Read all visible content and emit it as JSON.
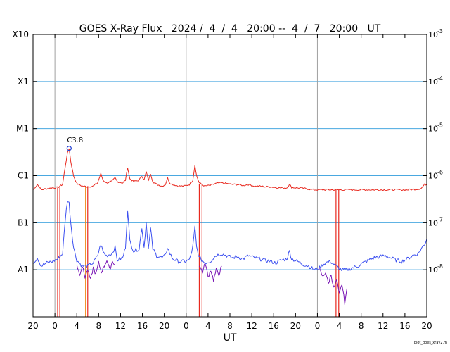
{
  "chart_data": {
    "type": "line",
    "title": "GOES X-Ray Flux   2024 /  4  /  4   20:00 --  4  /  7   20:00   UT",
    "xlabel": "UT",
    "ylabel": "",
    "footer": "plot_goes_xray2.m",
    "x_range_hours": [
      0,
      72
    ],
    "x_ticks": [
      {
        "h": 0,
        "label": "20"
      },
      {
        "h": 4,
        "label": "0"
      },
      {
        "h": 8,
        "label": "4"
      },
      {
        "h": 12,
        "label": "8"
      },
      {
        "h": 16,
        "label": "12"
      },
      {
        "h": 20,
        "label": "16"
      },
      {
        "h": 24,
        "label": "20"
      },
      {
        "h": 28,
        "label": "0"
      },
      {
        "h": 32,
        "label": "4"
      },
      {
        "h": 36,
        "label": "8"
      },
      {
        "h": 40,
        "label": "12"
      },
      {
        "h": 44,
        "label": "16"
      },
      {
        "h": 48,
        "label": "20"
      },
      {
        "h": 52,
        "label": "0"
      },
      {
        "h": 56,
        "label": "4"
      },
      {
        "h": 60,
        "label": "8"
      },
      {
        "h": 64,
        "label": "12"
      },
      {
        "h": 68,
        "label": "16"
      },
      {
        "h": 72,
        "label": "20"
      }
    ],
    "day_boundaries_hours": [
      4,
      28,
      52
    ],
    "y_scale": "log",
    "y_range": [
      1e-09,
      0.001
    ],
    "class_labels": [
      {
        "label": "X10",
        "value": 0.001
      },
      {
        "label": "X1",
        "value": 0.0001
      },
      {
        "label": "M1",
        "value": 1e-05
      },
      {
        "label": "C1",
        "value": 1e-06
      },
      {
        "label": "B1",
        "value": 1e-07
      },
      {
        "label": "A1",
        "value": 1e-08
      }
    ],
    "right_ticks": [
      {
        "base": "10",
        "exp": "-3",
        "value": 0.001
      },
      {
        "base": "10",
        "exp": "-4",
        "value": 0.0001
      },
      {
        "base": "10",
        "exp": "-5",
        "value": 1e-05
      },
      {
        "base": "10",
        "exp": "-6",
        "value": 1e-06
      },
      {
        "base": "10",
        "exp": "-7",
        "value": 1e-07
      },
      {
        "base": "10",
        "exp": "-8",
        "value": 1e-08
      }
    ],
    "grid_lines": [
      0.0001,
      1e-05,
      1e-06,
      1e-07,
      1e-08
    ],
    "annotation": {
      "label": "C3.8",
      "h": 6.6,
      "value": 3.8e-06
    },
    "colors": {
      "long_primary": "#e8281e",
      "long_secondary": "#f08c1e",
      "short_primary": "#3c50f0",
      "short_secondary": "#7814b4",
      "grid": "#4aa8e0",
      "day_line": "#a0a0a0",
      "marker": "#1e3cd2"
    },
    "series": [
      {
        "name": "",
        "color": "#e8281e",
        "points": [
          [
            0,
            5e-07
          ],
          [
            0.8,
            6.5e-07
          ],
          [
            1.5,
            5e-07
          ],
          [
            2.5,
            5.3e-07
          ],
          [
            3.5,
            5.5e-07
          ],
          [
            4.5,
            5.6e-07
          ],
          [
            5.4,
            6.5e-07
          ],
          [
            5.9,
            1.6e-06
          ],
          [
            6.3,
            3e-06
          ],
          [
            6.6,
            3.8e-06
          ],
          [
            6.9,
            2e-06
          ],
          [
            7.4,
            1e-06
          ],
          [
            8.0,
            6.8e-07
          ],
          [
            9.0,
            6e-07
          ],
          [
            10.0,
            5.8e-07
          ],
          [
            11.0,
            6e-07
          ],
          [
            11.8,
            7e-07
          ],
          [
            12.4,
            1.1e-06
          ],
          [
            12.8,
            8e-07
          ],
          [
            13.4,
            7e-07
          ],
          [
            14.4,
            7.5e-07
          ],
          [
            15.0,
            9e-07
          ],
          [
            15.4,
            7.5e-07
          ],
          [
            16.4,
            7e-07
          ],
          [
            16.9,
            8e-07
          ],
          [
            17.3,
            1.5e-06
          ],
          [
            17.7,
            8.5e-07
          ],
          [
            18.4,
            7.5e-07
          ],
          [
            19.4,
            8e-07
          ],
          [
            19.9,
            1e-06
          ],
          [
            20.3,
            8e-07
          ],
          [
            20.7,
            1.2e-06
          ],
          [
            21.1,
            8e-07
          ],
          [
            21.5,
            1.1e-06
          ],
          [
            21.9,
            7.5e-07
          ],
          [
            22.6,
            6.5e-07
          ],
          [
            23.6,
            6e-07
          ],
          [
            24.2,
            6.5e-07
          ],
          [
            24.6,
            9e-07
          ],
          [
            25.0,
            7e-07
          ],
          [
            25.6,
            6.5e-07
          ],
          [
            26.6,
            6e-07
          ],
          [
            27.6,
            6e-07
          ],
          [
            28.6,
            6.5e-07
          ],
          [
            29.2,
            8e-07
          ],
          [
            29.6,
            1.7e-06
          ],
          [
            29.9,
            1e-06
          ],
          [
            30.4,
            7e-07
          ],
          [
            31.4,
            6e-07
          ],
          [
            32.4,
            6.2e-07
          ],
          [
            33.4,
            6.8e-07
          ],
          [
            34.4,
            7e-07
          ],
          [
            35.4,
            6.8e-07
          ],
          [
            36.4,
            6.5e-07
          ],
          [
            37.4,
            6.5e-07
          ],
          [
            38.4,
            6.2e-07
          ],
          [
            39.4,
            6.5e-07
          ],
          [
            40.4,
            6e-07
          ],
          [
            41.4,
            6e-07
          ],
          [
            42.4,
            5.8e-07
          ],
          [
            43.4,
            5.8e-07
          ],
          [
            44.4,
            5.6e-07
          ],
          [
            45.4,
            5.5e-07
          ],
          [
            46.4,
            5.5e-07
          ],
          [
            46.9,
            6.5e-07
          ],
          [
            47.3,
            5.6e-07
          ],
          [
            48.4,
            5.5e-07
          ],
          [
            49.4,
            5.4e-07
          ],
          [
            50.4,
            5.2e-07
          ],
          [
            51.4,
            5e-07
          ],
          [
            52.4,
            5e-07
          ],
          [
            53.4,
            5e-07
          ],
          [
            54.4,
            5e-07
          ],
          [
            55.4,
            5e-07
          ],
          [
            56.4,
            5e-07
          ],
          [
            57.4,
            5e-07
          ],
          [
            58.4,
            5e-07
          ],
          [
            59.4,
            5e-07
          ],
          [
            60.4,
            5e-07
          ],
          [
            61.4,
            5e-07
          ],
          [
            62.4,
            5e-07
          ],
          [
            63.4,
            5e-07
          ],
          [
            64.4,
            5e-07
          ],
          [
            65.4,
            5e-07
          ],
          [
            66.4,
            5e-07
          ],
          [
            67.4,
            5e-07
          ],
          [
            68.4,
            5e-07
          ],
          [
            69.4,
            5.1e-07
          ],
          [
            70.4,
            5.2e-07
          ],
          [
            71.0,
            5.4e-07
          ],
          [
            71.6,
            6.5e-07
          ],
          [
            72,
            6.5e-07
          ]
        ]
      },
      {
        "name": "",
        "color": "#3c50f0",
        "points": [
          [
            0,
            1.4e-08
          ],
          [
            0.8,
            1.8e-08
          ],
          [
            1.5,
            1.2e-08
          ],
          [
            2.5,
            1.4e-08
          ],
          [
            3.5,
            1.5e-08
          ],
          [
            4.5,
            1.7e-08
          ],
          [
            5.4,
            2.2e-08
          ],
          [
            5.9,
            1.2e-07
          ],
          [
            6.3,
            3e-07
          ],
          [
            6.6,
            2.6e-07
          ],
          [
            6.9,
            1e-07
          ],
          [
            7.4,
            3e-08
          ],
          [
            8.0,
            1.6e-08
          ],
          [
            9.0,
            1.2e-08
          ],
          [
            10.0,
            1.2e-08
          ],
          [
            11.0,
            1.4e-08
          ],
          [
            11.8,
            2e-08
          ],
          [
            12.4,
            3.5e-08
          ],
          [
            12.8,
            2.4e-08
          ],
          [
            13.4,
            2e-08
          ],
          [
            14.4,
            2.2e-08
          ],
          [
            15.0,
            3e-08
          ],
          [
            15.4,
            1.6e-08
          ],
          [
            16.4,
            1.8e-08
          ],
          [
            16.9,
            3e-08
          ],
          [
            17.3,
            1.9e-07
          ],
          [
            17.7,
            4e-08
          ],
          [
            18.4,
            2.5e-08
          ],
          [
            19.4,
            2.8e-08
          ],
          [
            19.9,
            8e-08
          ],
          [
            20.3,
            3e-08
          ],
          [
            20.7,
            1e-07
          ],
          [
            21.1,
            2.8e-08
          ],
          [
            21.5,
            7.5e-08
          ],
          [
            21.9,
            2.8e-08
          ],
          [
            22.6,
            2e-08
          ],
          [
            23.6,
            1.8e-08
          ],
          [
            24.2,
            2e-08
          ],
          [
            24.6,
            3e-08
          ],
          [
            25.0,
            2.2e-08
          ],
          [
            25.6,
            1.7e-08
          ],
          [
            26.6,
            1.5e-08
          ],
          [
            27.6,
            1.5e-08
          ],
          [
            28.6,
            1.6e-08
          ],
          [
            29.2,
            3e-08
          ],
          [
            29.6,
            8e-08
          ],
          [
            29.9,
            3e-08
          ],
          [
            30.4,
            1.8e-08
          ],
          [
            31.4,
            1.4e-08
          ],
          [
            32.4,
            1.5e-08
          ],
          [
            33.4,
            2e-08
          ],
          [
            34.4,
            2.2e-08
          ],
          [
            35.4,
            2e-08
          ],
          [
            36.4,
            1.8e-08
          ],
          [
            37.4,
            1.9e-08
          ],
          [
            38.4,
            1.7e-08
          ],
          [
            39.4,
            2e-08
          ],
          [
            40.4,
            1.8e-08
          ],
          [
            41.4,
            1.7e-08
          ],
          [
            42.4,
            1.6e-08
          ],
          [
            43.4,
            1.5e-08
          ],
          [
            44.4,
            1.4e-08
          ],
          [
            45.4,
            1.6e-08
          ],
          [
            46.4,
            1.7e-08
          ],
          [
            46.9,
            2.5e-08
          ],
          [
            47.3,
            1.7e-08
          ],
          [
            48.4,
            1.5e-08
          ],
          [
            49.4,
            1.3e-08
          ],
          [
            50.4,
            1.2e-08
          ],
          [
            51.4,
            1e-08
          ],
          [
            52.4,
            1.1e-08
          ],
          [
            53.4,
            1.4e-08
          ],
          [
            54.4,
            1.5e-08
          ],
          [
            55.4,
            1.2e-08
          ],
          [
            56.4,
            1e-08
          ],
          [
            57.4,
            1e-08
          ],
          [
            58.4,
            1.1e-08
          ],
          [
            59.4,
            1.2e-08
          ],
          [
            60.4,
            1.4e-08
          ],
          [
            61.4,
            1.6e-08
          ],
          [
            62.4,
            1.8e-08
          ],
          [
            63.4,
            1.9e-08
          ],
          [
            64.4,
            2e-08
          ],
          [
            65.4,
            1.8e-08
          ],
          [
            66.4,
            1.6e-08
          ],
          [
            67.4,
            1.5e-08
          ],
          [
            68.4,
            1.7e-08
          ],
          [
            69.4,
            2e-08
          ],
          [
            70.4,
            2.2e-08
          ],
          [
            71.0,
            2.8e-08
          ],
          [
            71.6,
            3.5e-08
          ],
          [
            72,
            4.5e-08
          ]
        ]
      },
      {
        "name": "",
        "color": "#7814b4",
        "points": [
          [
            8.0,
            1.3e-08
          ],
          [
            8.5,
            8e-09
          ],
          [
            9.0,
            1.2e-08
          ],
          [
            9.5,
            7e-09
          ],
          [
            10.0,
            1e-08
          ],
          [
            10.5,
            6e-09
          ],
          [
            11.0,
            1.1e-08
          ],
          [
            11.5,
            8e-09
          ],
          [
            12.0,
            1.4e-08
          ],
          [
            12.5,
            9e-09
          ],
          [
            13.0,
            1.2e-08
          ],
          [
            13.5,
            1.6e-08
          ],
          [
            14.0,
            1e-08
          ],
          [
            14.5,
            1.5e-08
          ],
          [
            15.0,
            1.3e-08
          ]
        ]
      },
      {
        "name": "",
        "color": "#7814b4",
        "points": [
          [
            30.4,
            1.2e-08
          ],
          [
            31.0,
            9e-09
          ],
          [
            31.5,
            1.4e-08
          ],
          [
            32.0,
            7e-09
          ],
          [
            32.5,
            1e-08
          ],
          [
            33.0,
            6e-09
          ],
          [
            33.5,
            1e-08
          ],
          [
            34.0,
            8e-09
          ],
          [
            34.5,
            1.2e-08
          ]
        ]
      },
      {
        "name": "",
        "color": "#7814b4",
        "points": [
          [
            52.4,
            1e-08
          ],
          [
            53.0,
            7e-09
          ],
          [
            53.5,
            9e-09
          ],
          [
            54.0,
            5e-09
          ],
          [
            54.5,
            8e-09
          ],
          [
            55.0,
            4e-09
          ],
          [
            55.5,
            6e-09
          ],
          [
            56.0,
            3e-09
          ],
          [
            56.5,
            5e-09
          ],
          [
            57.0,
            2e-09
          ],
          [
            57.4,
            4e-09
          ]
        ]
      }
    ],
    "dropouts": [
      {
        "h": 4.5,
        "low": 1e-09,
        "high": 5.6e-07,
        "color": "#e8281e"
      },
      {
        "h": 4.9,
        "low": 1e-09,
        "high": 5.6e-07,
        "color": "#e8281e"
      },
      {
        "h": 9.6,
        "low": 1e-09,
        "high": 6e-07,
        "color": "#f08c1e"
      },
      {
        "h": 10.0,
        "low": 1e-09,
        "high": 6e-07,
        "color": "#e8281e"
      },
      {
        "h": 30.4,
        "low": 1e-09,
        "high": 6.5e-07,
        "color": "#e8281e"
      },
      {
        "h": 30.9,
        "low": 1e-09,
        "high": 6.5e-07,
        "color": "#e8281e"
      },
      {
        "h": 55.4,
        "low": 1e-09,
        "high": 5e-07,
        "color": "#e8281e"
      },
      {
        "h": 55.9,
        "low": 1e-09,
        "high": 5e-07,
        "color": "#e8281e"
      }
    ]
  }
}
